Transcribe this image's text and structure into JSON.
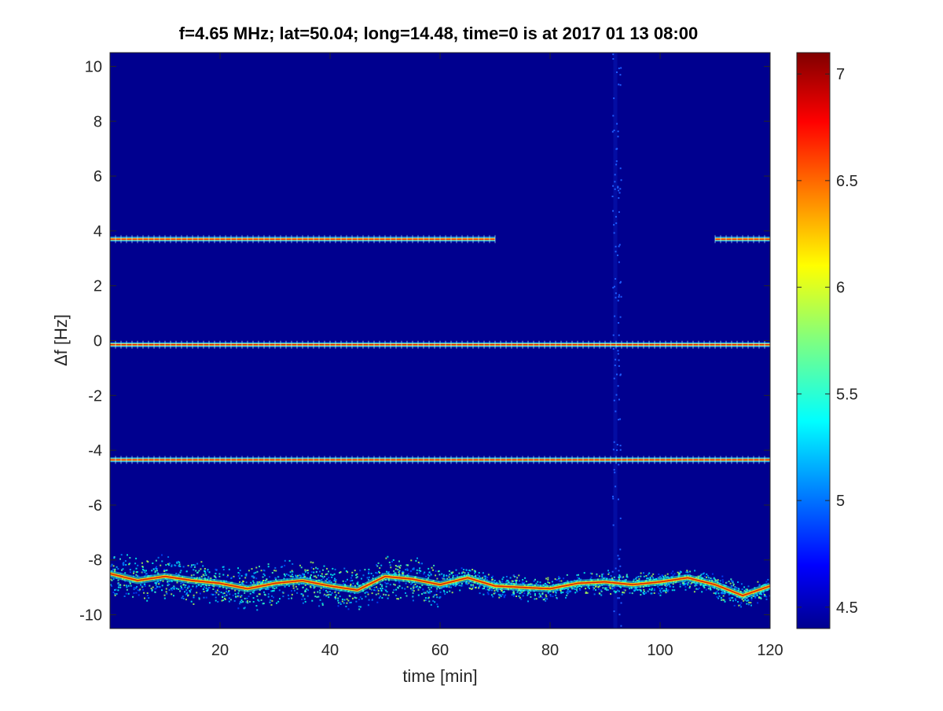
{
  "chart_data": {
    "type": "heatmap",
    "title": "f=4.65 MHz;  lat=50.04; long=14.48, time=0 is at 2017 01 13 08:00",
    "xlabel": "time [min]",
    "ylabel": "Δf [Hz]",
    "xlim": [
      0,
      120
    ],
    "ylim": [
      -10.5,
      10.5
    ],
    "x_ticks": [
      20,
      40,
      60,
      80,
      100,
      120
    ],
    "y_ticks": [
      10,
      8,
      6,
      4,
      2,
      0,
      -2,
      -4,
      -6,
      -8,
      -10
    ],
    "colorbar": {
      "colormap": "jet",
      "range": [
        4.4,
        7.1
      ],
      "ticks": [
        7,
        6.5,
        6,
        5.5,
        5,
        4.5
      ]
    },
    "background_color": "#00008f",
    "series": [
      {
        "x": [
          0,
          70
        ],
        "y": [
          3.7,
          3.7
        ]
      },
      {
        "x": [
          110,
          120
        ],
        "y": [
          3.7,
          3.7
        ]
      },
      {
        "x": [
          0,
          120
        ],
        "y": [
          -0.15,
          -0.15
        ]
      },
      {
        "x": [
          0,
          120
        ],
        "y": [
          -4.35,
          -4.35
        ]
      },
      {
        "x": [
          0,
          5,
          10,
          15,
          20,
          25,
          30,
          35,
          40,
          45,
          50,
          55,
          60,
          65,
          70,
          75,
          80,
          85,
          90,
          95,
          100,
          105,
          110,
          115,
          120
        ],
        "y": [
          -8.5,
          -8.75,
          -8.6,
          -8.75,
          -8.85,
          -9.05,
          -8.85,
          -8.75,
          -8.95,
          -9.1,
          -8.6,
          -8.7,
          -8.9,
          -8.65,
          -8.95,
          -9.0,
          -9.05,
          -8.85,
          -8.8,
          -8.9,
          -8.8,
          -8.65,
          -8.9,
          -9.3,
          -8.95
        ]
      }
    ]
  }
}
